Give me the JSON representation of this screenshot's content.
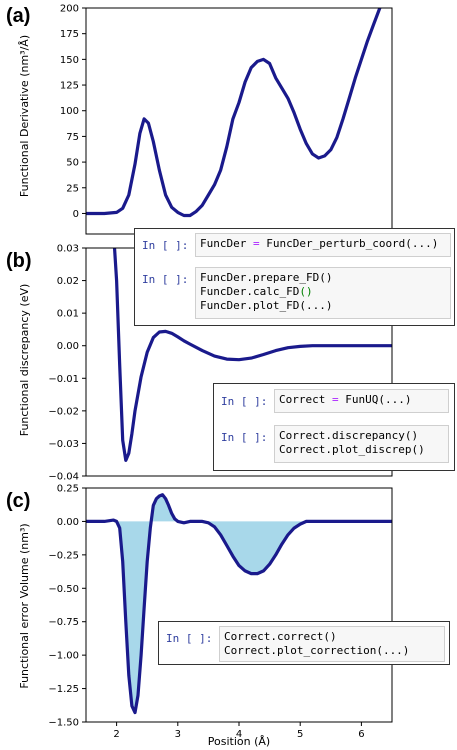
{
  "colors": {
    "line": "#1a1a8c",
    "fill": "#a8d8ea",
    "axis": "#000000"
  },
  "panels": {
    "a": {
      "label": "(a)"
    },
    "b": {
      "label": "(b)"
    },
    "c": {
      "label": "(c)"
    }
  },
  "xlabel": "Position (Å)",
  "code_boxes": {
    "a": {
      "cell1": {
        "prompt": "In [ ]:",
        "code": "FuncDer = FuncDer_perturb_coord(...)"
      },
      "cell2": {
        "prompt": "In [ ]:",
        "code": "FuncDer.prepare_FD()\nFuncDer.calc_FD()\nFuncDer.plot_FD(...)"
      }
    },
    "b": {
      "cell1": {
        "prompt": "In [ ]:",
        "code": "Correct = FunUQ(...)"
      },
      "cell2": {
        "prompt": "In [ ]:",
        "code": "Correct.discrepancy()\nCorrect.plot_discrep()"
      }
    },
    "c": {
      "cell1": {
        "prompt": "In [ ]:",
        "code": "Correct.correct()\nCorrect.plot_correction(...)"
      }
    }
  },
  "chart_data": [
    {
      "type": "line",
      "panel": "(a)",
      "ylabel": "Functional Derivative (nm³/Å)",
      "xlim": [
        1.5,
        6.5
      ],
      "ylim": [
        -20,
        200
      ],
      "yticks": [
        0,
        25,
        50,
        75,
        100,
        125,
        150,
        175,
        200
      ],
      "xticks": [],
      "grid": false,
      "x": [
        1.5,
        1.8,
        2.0,
        2.1,
        2.2,
        2.3,
        2.38,
        2.45,
        2.52,
        2.6,
        2.7,
        2.8,
        2.9,
        3.0,
        3.1,
        3.2,
        3.3,
        3.4,
        3.5,
        3.6,
        3.7,
        3.8,
        3.9,
        4.0,
        4.1,
        4.2,
        4.3,
        4.4,
        4.5,
        4.6,
        4.7,
        4.8,
        4.9,
        5.0,
        5.1,
        5.2,
        5.3,
        5.4,
        5.5,
        5.6,
        5.7,
        5.8,
        5.9,
        6.0,
        6.1,
        6.2,
        6.3,
        6.4,
        6.5
      ],
      "y": [
        0,
        0,
        1,
        5,
        18,
        48,
        78,
        92,
        88,
        70,
        42,
        18,
        6,
        1,
        -2,
        -2,
        2,
        8,
        18,
        28,
        42,
        65,
        92,
        108,
        128,
        142,
        148,
        150,
        146,
        132,
        122,
        112,
        98,
        82,
        68,
        58,
        54,
        56,
        62,
        74,
        92,
        112,
        132,
        150,
        168,
        184,
        200,
        210,
        222
      ]
    },
    {
      "type": "line",
      "panel": "(b)",
      "ylabel": "Functional discrepancy (eV)",
      "xlim": [
        1.5,
        6.5
      ],
      "ylim": [
        -0.04,
        0.03
      ],
      "yticks": [
        -0.04,
        -0.03,
        -0.02,
        -0.01,
        0.0,
        0.01,
        0.02,
        0.03
      ],
      "xticks": [],
      "grid": false,
      "x": [
        1.95,
        2.0,
        2.05,
        2.1,
        2.15,
        2.2,
        2.25,
        2.3,
        2.4,
        2.5,
        2.6,
        2.7,
        2.8,
        2.9,
        3.0,
        3.1,
        3.2,
        3.4,
        3.6,
        3.8,
        4.0,
        4.2,
        4.4,
        4.6,
        4.8,
        5.0,
        5.2,
        5.4,
        5.6,
        6.0,
        6.5
      ],
      "y": [
        0.035,
        0.02,
        -0.006,
        -0.029,
        -0.0352,
        -0.033,
        -0.027,
        -0.02,
        -0.0095,
        -0.002,
        0.0025,
        0.0042,
        0.0044,
        0.0038,
        0.0027,
        0.0015,
        0.0005,
        -0.0015,
        -0.0032,
        -0.0041,
        -0.0043,
        -0.0038,
        -0.0027,
        -0.0015,
        -0.0006,
        -0.0002,
        0.0,
        0.0,
        0.0,
        0.0,
        0.0
      ]
    },
    {
      "type": "area",
      "panel": "(c)",
      "ylabel": "Functional error Volume (nm³)",
      "xlabel": "Position (Å)",
      "xlim": [
        1.5,
        6.5
      ],
      "ylim": [
        -1.5,
        0.25
      ],
      "yticks": [
        -1.5,
        -1.25,
        -1.0,
        -0.75,
        -0.5,
        -0.25,
        0.0,
        0.25
      ],
      "xticks": [
        2,
        3,
        4,
        5,
        6
      ],
      "grid": false,
      "x": [
        1.5,
        1.8,
        1.95,
        2.0,
        2.05,
        2.1,
        2.15,
        2.2,
        2.25,
        2.3,
        2.35,
        2.4,
        2.45,
        2.5,
        2.55,
        2.6,
        2.65,
        2.7,
        2.75,
        2.8,
        2.85,
        2.9,
        2.95,
        3.0,
        3.1,
        3.2,
        3.3,
        3.4,
        3.5,
        3.6,
        3.7,
        3.8,
        3.9,
        4.0,
        4.1,
        4.2,
        4.3,
        4.4,
        4.5,
        4.6,
        4.7,
        4.8,
        4.9,
        5.0,
        5.1,
        5.5,
        6.0,
        6.5
      ],
      "y": [
        0,
        0,
        0.01,
        0.0,
        -0.05,
        -0.3,
        -0.75,
        -1.15,
        -1.38,
        -1.43,
        -1.3,
        -1.0,
        -0.65,
        -0.3,
        -0.05,
        0.12,
        0.17,
        0.19,
        0.2,
        0.17,
        0.12,
        0.06,
        0.02,
        0.0,
        -0.01,
        0.0,
        0.0,
        0.0,
        -0.01,
        -0.04,
        -0.1,
        -0.18,
        -0.26,
        -0.33,
        -0.37,
        -0.39,
        -0.39,
        -0.37,
        -0.32,
        -0.25,
        -0.17,
        -0.1,
        -0.05,
        -0.02,
        0.0,
        0.0,
        0.0,
        0.0
      ]
    }
  ]
}
